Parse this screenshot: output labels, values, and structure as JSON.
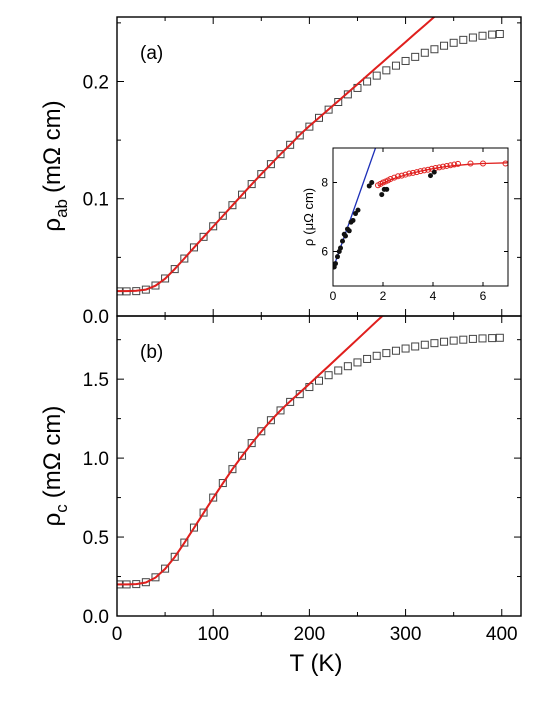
{
  "chart_data": [
    {
      "panel": "(a)",
      "type": "scatter",
      "xlabel": "",
      "ylabel_main": "ρ",
      "ylabel_sub": "ab",
      "ylabel_unit": "(mΩ cm)",
      "xlim": [
        0,
        420
      ],
      "ylim": [
        0.0,
        0.255
      ],
      "xticks": [
        0,
        100,
        200,
        300,
        400
      ],
      "yticks": [
        0.0,
        0.1,
        0.2
      ],
      "ytick_labels": [
        "0.0",
        "0.1",
        "0.2"
      ],
      "series": [
        {
          "marker": "open-square",
          "color": "#444444",
          "x": [
            2,
            10,
            20,
            30,
            40,
            50,
            60,
            70,
            80,
            90,
            100,
            110,
            120,
            130,
            140,
            150,
            160,
            170,
            180,
            190,
            200,
            210,
            220,
            230,
            240,
            250,
            260,
            270,
            280,
            290,
            300,
            310,
            320,
            330,
            340,
            350,
            360,
            370,
            380,
            390,
            398
          ],
          "y": [
            0.021,
            0.021,
            0.0212,
            0.0225,
            0.026,
            0.032,
            0.04,
            0.049,
            0.0585,
            0.0675,
            0.0765,
            0.0855,
            0.0945,
            0.1035,
            0.1125,
            0.121,
            0.1295,
            0.138,
            0.146,
            0.154,
            0.1615,
            0.169,
            0.176,
            0.1825,
            0.189,
            0.1945,
            0.2,
            0.205,
            0.2095,
            0.2135,
            0.2175,
            0.221,
            0.2245,
            0.2275,
            0.2305,
            0.233,
            0.2355,
            0.2375,
            0.239,
            0.24,
            0.2405
          ]
        },
        {
          "marker": "line",
          "color": "#e0201e",
          "x": [
            0,
            10,
            20,
            30,
            40,
            50,
            60,
            70,
            80,
            90,
            100,
            110,
            120,
            130,
            140,
            150,
            160,
            170,
            180,
            190,
            200,
            210,
            220,
            230,
            240,
            250,
            260,
            270,
            280,
            290,
            300,
            310,
            320,
            330,
            340,
            350,
            360,
            370,
            380,
            383
          ],
          "y": [
            0.0212,
            0.0212,
            0.0215,
            0.0225,
            0.0258,
            0.0318,
            0.04,
            0.049,
            0.0583,
            0.0673,
            0.0763,
            0.0853,
            0.0943,
            0.1033,
            0.1123,
            0.121,
            0.1295,
            0.138,
            0.146,
            0.1545,
            0.162,
            0.169,
            0.1762,
            0.1833,
            0.1905,
            0.1977,
            0.2049,
            0.2121,
            0.2193,
            0.2265,
            0.2337,
            0.2409,
            0.248,
            0.2552,
            0.2624,
            0.2696,
            0.2768,
            0.284,
            0.2912,
            0.2934
          ]
        }
      ]
    },
    {
      "panel": "(b)",
      "type": "scatter",
      "xlabel": "T (K)",
      "ylabel_main": "ρ",
      "ylabel_sub": "c",
      "ylabel_unit": "(mΩ cm)",
      "xlim": [
        0,
        420
      ],
      "ylim": [
        0.0,
        1.9
      ],
      "xticks": [
        0,
        100,
        200,
        300,
        400
      ],
      "yticks": [
        0.0,
        0.5,
        1.0,
        1.5
      ],
      "ytick_labels": [
        "0.0",
        "0.5",
        "1.0",
        "1.5"
      ],
      "series": [
        {
          "marker": "open-square",
          "color": "#444444",
          "x": [
            2,
            10,
            20,
            30,
            40,
            50,
            60,
            70,
            80,
            90,
            100,
            110,
            120,
            130,
            140,
            150,
            160,
            170,
            180,
            190,
            200,
            210,
            220,
            230,
            240,
            250,
            260,
            270,
            280,
            290,
            300,
            310,
            320,
            330,
            340,
            350,
            360,
            370,
            380,
            390,
            398
          ],
          "y": [
            0.2,
            0.2,
            0.202,
            0.214,
            0.245,
            0.3,
            0.375,
            0.465,
            0.56,
            0.655,
            0.75,
            0.842,
            0.93,
            1.015,
            1.095,
            1.17,
            1.24,
            1.302,
            1.356,
            1.405,
            1.45,
            1.49,
            1.525,
            1.555,
            1.582,
            1.606,
            1.628,
            1.648,
            1.665,
            1.68,
            1.694,
            1.707,
            1.718,
            1.728,
            1.737,
            1.744,
            1.75,
            1.755,
            1.758,
            1.76,
            1.762
          ]
        },
        {
          "marker": "line",
          "color": "#e0201e",
          "x": [
            0,
            10,
            20,
            30,
            40,
            50,
            60,
            70,
            80,
            90,
            100,
            110,
            120,
            130,
            140,
            150,
            160,
            170,
            180,
            190,
            200,
            210,
            220,
            230,
            240,
            250,
            260,
            270,
            280,
            290,
            296
          ],
          "y": [
            0.2,
            0.2,
            0.202,
            0.212,
            0.243,
            0.298,
            0.373,
            0.463,
            0.558,
            0.653,
            0.748,
            0.84,
            0.93,
            1.013,
            1.093,
            1.168,
            1.238,
            1.302,
            1.36,
            1.415,
            1.47,
            1.527,
            1.583,
            1.64,
            1.697,
            1.753,
            1.81,
            1.867,
            1.923,
            1.98,
            2.014
          ]
        }
      ]
    },
    {
      "panel": "inset",
      "type": "scatter",
      "xlabel": "",
      "ylabel_main": "ρ",
      "ylabel_sub": "",
      "ylabel_unit": "(μΩ cm)",
      "xlim": [
        0,
        7
      ],
      "ylim": [
        5.0,
        9.0
      ],
      "xticks": [
        0,
        2,
        4,
        6
      ],
      "yticks": [
        6,
        8
      ],
      "ytick_labels": [
        "6",
        "8"
      ],
      "series": [
        {
          "marker": "open-circle",
          "color": "#e0201e",
          "x": [
            1.8,
            1.9,
            2.0,
            2.1,
            2.2,
            2.3,
            2.45,
            2.6,
            2.75,
            2.9,
            3.05,
            3.2,
            3.35,
            3.5,
            3.65,
            3.8,
            3.95,
            4.1,
            4.25,
            4.4,
            4.55,
            4.7,
            4.85,
            5.0,
            5.5,
            6.0,
            6.9
          ],
          "y": [
            7.92,
            7.96,
            8.0,
            8.03,
            8.06,
            8.1,
            8.14,
            8.18,
            8.2,
            8.23,
            8.26,
            8.28,
            8.3,
            8.33,
            8.35,
            8.37,
            8.4,
            8.42,
            8.44,
            8.46,
            8.48,
            8.5,
            8.52,
            8.54,
            8.55,
            8.55,
            8.55
          ]
        },
        {
          "marker": "filled-circle",
          "color": "#111111",
          "x": [
            0.05,
            0.1,
            0.18,
            0.25,
            0.3,
            0.38,
            0.45,
            0.5,
            0.58,
            0.65,
            0.72,
            0.8,
            0.9,
            1.0,
            1.45,
            1.55,
            1.95,
            2.05,
            2.15,
            3.9,
            4.05
          ],
          "y": [
            5.55,
            5.65,
            5.85,
            6.0,
            6.1,
            6.3,
            6.5,
            6.45,
            6.65,
            6.6,
            6.85,
            6.9,
            7.1,
            7.2,
            7.9,
            8.0,
            7.65,
            7.8,
            7.8,
            8.2,
            8.3
          ]
        },
        {
          "marker": "line",
          "color": "#1c2fb8",
          "x": [
            0,
            1.7
          ],
          "y": [
            5.5,
            9.0
          ]
        },
        {
          "marker": "line",
          "color": "#e0201e",
          "x": [
            1.8,
            2.0,
            2.3,
            2.6,
            3.0,
            3.5,
            4.0,
            4.5,
            5.0,
            5.5,
            6.0,
            7.0
          ],
          "y": [
            7.9,
            7.98,
            8.08,
            8.15,
            8.24,
            8.33,
            8.4,
            8.46,
            8.5,
            8.53,
            8.55,
            8.57
          ]
        }
      ]
    }
  ]
}
